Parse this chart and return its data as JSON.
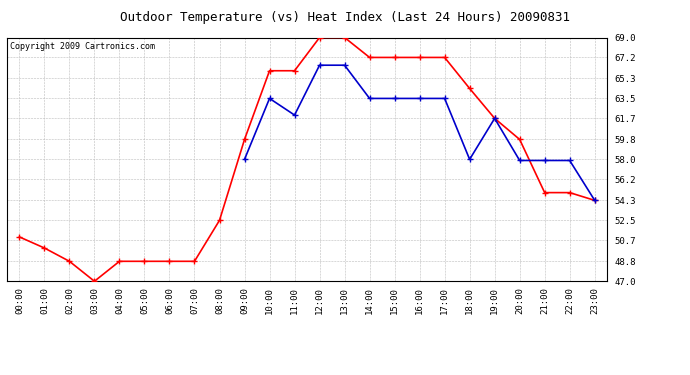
{
  "title": "Outdoor Temperature (vs) Heat Index (Last 24 Hours) 20090831",
  "copyright": "Copyright 2009 Cartronics.com",
  "x_labels": [
    "00:00",
    "01:00",
    "02:00",
    "03:00",
    "04:00",
    "05:00",
    "06:00",
    "07:00",
    "08:00",
    "09:00",
    "10:00",
    "11:00",
    "12:00",
    "13:00",
    "14:00",
    "15:00",
    "16:00",
    "17:00",
    "18:00",
    "19:00",
    "20:00",
    "21:00",
    "22:00",
    "23:00"
  ],
  "red_data": [
    51.0,
    50.0,
    48.8,
    47.0,
    48.8,
    48.8,
    48.8,
    48.8,
    52.5,
    59.8,
    66.0,
    66.0,
    69.0,
    69.0,
    67.2,
    67.2,
    67.2,
    67.2,
    64.4,
    61.7,
    59.8,
    55.0,
    55.0,
    54.3
  ],
  "blue_data": [
    null,
    null,
    null,
    null,
    null,
    null,
    null,
    null,
    null,
    58.0,
    63.5,
    62.0,
    66.5,
    66.5,
    63.5,
    63.5,
    63.5,
    63.5,
    58.0,
    61.7,
    57.9,
    57.9,
    57.9,
    54.3
  ],
  "ylim": [
    47.0,
    69.0
  ],
  "yticks": [
    47.0,
    48.8,
    50.7,
    52.5,
    54.3,
    56.2,
    58.0,
    59.8,
    61.7,
    63.5,
    65.3,
    67.2,
    69.0
  ],
  "red_color": "#ff0000",
  "blue_color": "#0000cc",
  "bg_color": "#ffffff",
  "plot_bg_color": "#ffffff",
  "grid_color": "#bbbbbb",
  "title_fontsize": 9,
  "copyright_fontsize": 6,
  "tick_fontsize": 6.5
}
